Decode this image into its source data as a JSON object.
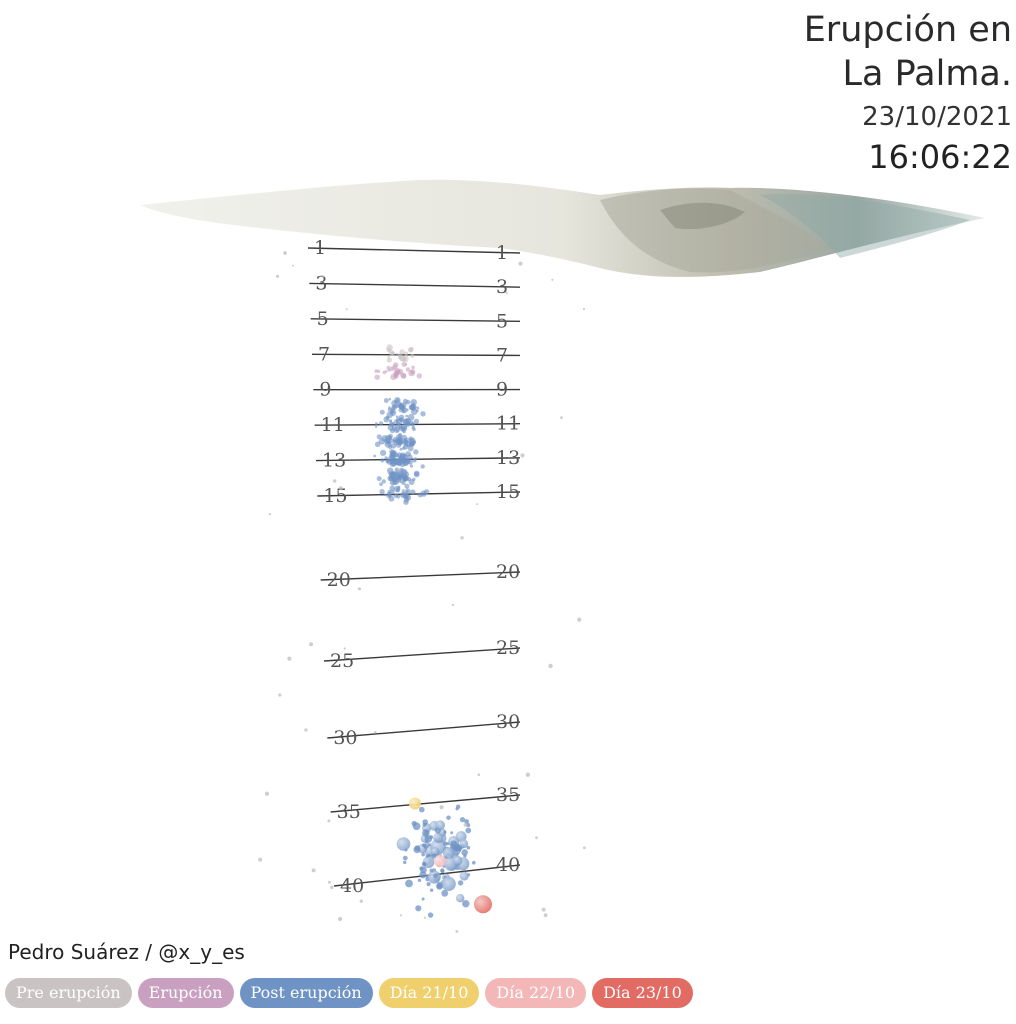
{
  "title": {
    "line1": "Erupción en",
    "line2": "La Palma.",
    "date": "23/10/2021",
    "time": "16:06:22"
  },
  "author": "Pedro Suárez / @x_y_es",
  "legend": [
    {
      "label": "Pre erupción",
      "color": "#c9c3c3"
    },
    {
      "label": "Erupción",
      "color": "#c9a0c0"
    },
    {
      "label": "Post erupción",
      "color": "#6f93c4"
    },
    {
      "label": "Día 21/10",
      "color": "#efd06c"
    },
    {
      "label": "Día 22/10",
      "color": "#f3b7b7"
    },
    {
      "label": "Día 23/10",
      "color": "#e26b63"
    }
  ],
  "chart_data": {
    "type": "scatter",
    "depth_levels": [
      "1",
      "3",
      "5",
      "7",
      "9",
      "11",
      "13",
      "15",
      "20",
      "25",
      "30",
      "35",
      "40"
    ],
    "clusters": [
      {
        "depth": 7,
        "count": 20,
        "category": "Pre erupción"
      },
      {
        "depth": 8,
        "count": 28,
        "category": "Erupción"
      },
      {
        "depth": 10,
        "count": 40,
        "category": "Post erupción"
      },
      {
        "depth": 11,
        "count": 45,
        "category": "Post erupción"
      },
      {
        "depth": 12,
        "count": 55,
        "category": "Post erupción"
      },
      {
        "depth": 13,
        "count": 60,
        "category": "Post erupción"
      },
      {
        "depth": 14,
        "count": 55,
        "category": "Post erupción"
      },
      {
        "depth": 15,
        "count": 30,
        "category": "Post erupción"
      },
      {
        "depth": 38,
        "count": 80,
        "category": "Post erupción"
      },
      {
        "depth": 40,
        "count": 40,
        "category": "Post erupción"
      }
    ],
    "highlights": [
      {
        "depth": 35,
        "category": "Día 21/10"
      },
      {
        "depth": 39,
        "category": "Día 22/10"
      },
      {
        "depth": 42,
        "category": "Día 23/10"
      }
    ]
  }
}
